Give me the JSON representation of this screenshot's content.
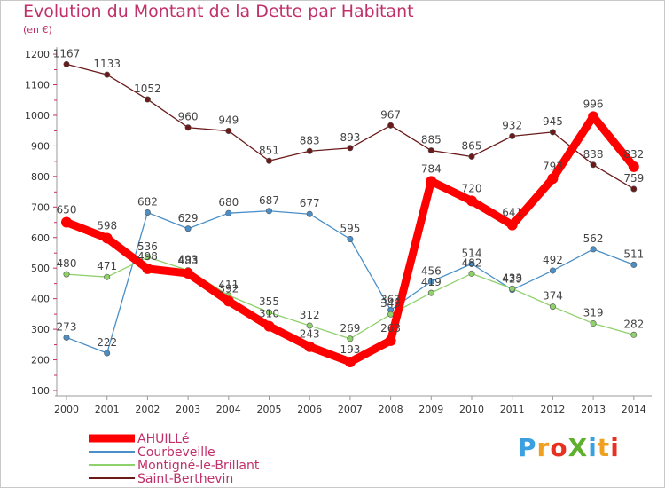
{
  "chart_data": {
    "type": "line",
    "title": "Evolution du Montant de la Dette par Habitant",
    "unit_label": "(en €)",
    "categories": [
      "2000",
      "2001",
      "2002",
      "2003",
      "2004",
      "2005",
      "2006",
      "2007",
      "2008",
      "2009",
      "2010",
      "2011",
      "2012",
      "2013",
      "2014"
    ],
    "ylim": [
      100,
      1200
    ],
    "yticks": [
      100,
      200,
      300,
      400,
      500,
      600,
      700,
      800,
      900,
      1000,
      1100,
      1200
    ],
    "grid": false,
    "legend_position": "bottom-left",
    "series": [
      {
        "name": "Saint-Berthevin",
        "color": "#6b1a1a",
        "values": [
          1167,
          1133,
          1052,
          960,
          949,
          851,
          883,
          893,
          967,
          885,
          865,
          932,
          945,
          838,
          759
        ]
      },
      {
        "name": "Courbeveille",
        "color": "#4a8fc8",
        "values": [
          273,
          222,
          682,
          629,
          680,
          687,
          677,
          595,
          363,
          456,
          514,
          429,
          492,
          562,
          511
        ]
      },
      {
        "name": "Montigné-le-Brillant",
        "color": "#8fd16a",
        "values": [
          480,
          471,
          536,
          493,
          411,
          355,
          312,
          269,
          349,
          419,
          482,
          433,
          374,
          319,
          282
        ]
      },
      {
        "name": "AHUILLé",
        "color": "#ff0000",
        "values": [
          650,
          598,
          498,
          483,
          392,
          310,
          243,
          193,
          263,
          784,
          720,
          641,
          793,
          996,
          832
        ]
      }
    ],
    "legend_order": [
      "AHUILLé",
      "Courbeveille",
      "Montigné-le-Brillant",
      "Saint-Berthevin"
    ]
  },
  "logo": {
    "text": "ProXiti",
    "letters": [
      "P",
      "r",
      "o",
      "X",
      "i",
      "t",
      "i"
    ],
    "colors": [
      "#3aa0e0",
      "#f0a020",
      "#e83020",
      "#60b030",
      "#3aa0e0",
      "#f0a020",
      "#e83020"
    ]
  }
}
